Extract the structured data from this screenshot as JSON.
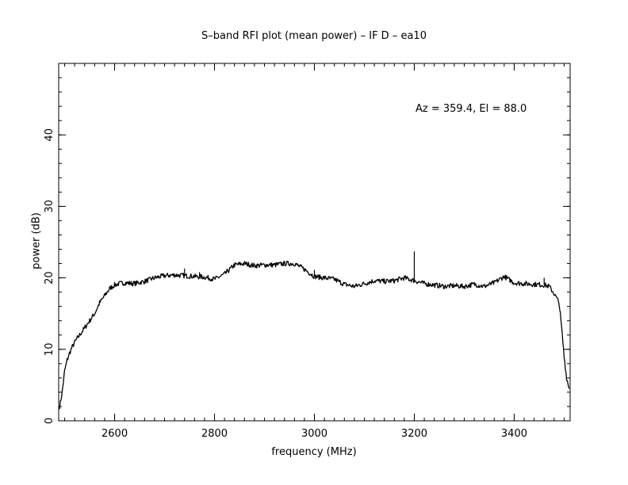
{
  "chart_data": {
    "type": "line",
    "title": "S–band RFI plot (mean power) – IF D – ea10",
    "xlabel": "frequency (MHz)",
    "ylabel": "power (dB)",
    "annotation": "Az = 359.4, El = 88.0",
    "xlim": [
      2488,
      3512
    ],
    "ylim": [
      0,
      50
    ],
    "x_ticks": [
      2600,
      2800,
      3000,
      3200,
      3400
    ],
    "y_ticks": [
      0,
      10,
      20,
      30,
      40
    ],
    "x_minor_step": 20,
    "y_minor_step": 2,
    "grid": false,
    "line_color": "#000000",
    "series": [
      {
        "x": [
          2490,
          2495,
          2500,
          2505,
          2510,
          2515,
          2520,
          2530,
          2540,
          2550,
          2560,
          2570,
          2580,
          2590,
          2600,
          2610,
          2620,
          2640,
          2660,
          2680,
          2700,
          2720,
          2740,
          2760,
          2780,
          2800,
          2820,
          2840,
          2860,
          2880,
          2900,
          2920,
          2940,
          2960,
          2980,
          3000,
          3020,
          3040,
          3060,
          3080,
          3100,
          3120,
          3140,
          3160,
          3180,
          3200,
          3220,
          3240,
          3260,
          3280,
          3300,
          3320,
          3340,
          3360,
          3380,
          3400,
          3420,
          3440,
          3460,
          3470,
          3480,
          3490,
          3495,
          3500,
          3505,
          3510
        ],
        "y": [
          2,
          4,
          7,
          8.5,
          9.5,
          10.3,
          11,
          12,
          13,
          14,
          15,
          16.5,
          17.5,
          18.5,
          19,
          19.2,
          19.3,
          19.2,
          19.5,
          20,
          20.3,
          20.4,
          20.3,
          20.2,
          20.1,
          19.8,
          20.5,
          21.8,
          22,
          21.7,
          21.8,
          21.8,
          22,
          22,
          21.2,
          20.2,
          20,
          19.8,
          19.1,
          18.8,
          19.2,
          19.6,
          19.5,
          19.6,
          20,
          19.6,
          19.2,
          19,
          18.8,
          18.9,
          18.8,
          19.1,
          18.8,
          19.3,
          20.2,
          19.3,
          19.2,
          19.1,
          19.0,
          18.8,
          17.8,
          16.5,
          13,
          9,
          6,
          4.5
        ]
      }
    ],
    "spikes": [
      {
        "x": 2740,
        "y": 21.3
      },
      {
        "x": 2770,
        "y": 20.8
      },
      {
        "x": 3000,
        "y": 21.1
      },
      {
        "x": 3200,
        "y": 23.7
      },
      {
        "x": 3460,
        "y": 20.0
      }
    ]
  }
}
